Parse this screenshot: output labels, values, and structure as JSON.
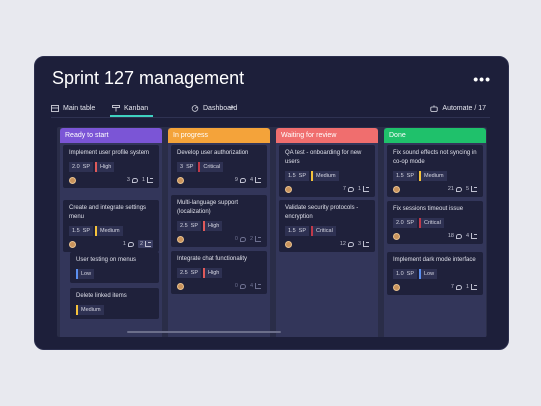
{
  "board": {
    "title": "Sprint 127 management",
    "more_label": "•••",
    "tabs": {
      "main": "Main table",
      "kanban": "Kanban",
      "dashboard": "Dashboard",
      "add": "+",
      "automate": "Automate / 17"
    }
  },
  "colors": {
    "ready": "#7b55d6",
    "progress": "#f4a33a",
    "waiting": "#f06e6e",
    "done": "#1fc16b",
    "high": "#e05a5a",
    "medium": "#f5c33b",
    "low": "#5b8ff0",
    "critical": "#c0394a"
  },
  "columns": [
    {
      "name": "Ready to start",
      "cards": [
        {
          "title": "Implement user profile system",
          "sp": "2.0",
          "sp_label": "SP",
          "priority": "High",
          "comments": "3",
          "subitems": "1"
        },
        {
          "title": "Create and integrate settings menu",
          "sp": "1.5",
          "sp_label": "SP",
          "priority": "Medium",
          "comments": "1",
          "subitems": "2"
        }
      ],
      "subitems": [
        {
          "title": "User testing on menus",
          "priority": "Low"
        },
        {
          "title": "Delete linked items",
          "priority": "Medium"
        }
      ]
    },
    {
      "name": "In progress",
      "cards": [
        {
          "title": "Develop user authorization",
          "sp": "3",
          "sp_label": "SP",
          "priority": "Critical",
          "comments": "9",
          "subitems": "4"
        },
        {
          "title": "Multi-language support (localization)",
          "sp": "2.5",
          "sp_label": "SP",
          "priority": "High",
          "comments": "0",
          "subitems": "2"
        },
        {
          "title": "Integrate chat functionality",
          "sp": "2.5",
          "sp_label": "SP",
          "priority": "High",
          "comments": "0",
          "subitems": "4"
        }
      ]
    },
    {
      "name": "Waiting for review",
      "cards": [
        {
          "title": "QA test - onboarding for new users",
          "sp": "1.5",
          "sp_label": "SP",
          "priority": "Medium",
          "comments": "7",
          "subitems": "1"
        },
        {
          "title": "Validate security protocols - encryption",
          "sp": "1.5",
          "sp_label": "SP",
          "priority": "Critical",
          "comments": "12",
          "subitems": "3"
        }
      ]
    },
    {
      "name": "Done",
      "cards": [
        {
          "title": "Fix sound effects not syncing in co-op mode",
          "sp": "1.5",
          "sp_label": "SP",
          "priority": "Medium",
          "comments": "21",
          "subitems": "5"
        },
        {
          "title": "Fix sessions timeout issue",
          "sp": "2.0",
          "sp_label": "SP",
          "priority": "Critical",
          "comments": "18",
          "subitems": "4"
        },
        {
          "title": "Implement dark mode interface",
          "sp": "1.0",
          "sp_label": "SP",
          "priority": "Low",
          "comments": "7",
          "subitems": "1"
        }
      ]
    }
  ]
}
